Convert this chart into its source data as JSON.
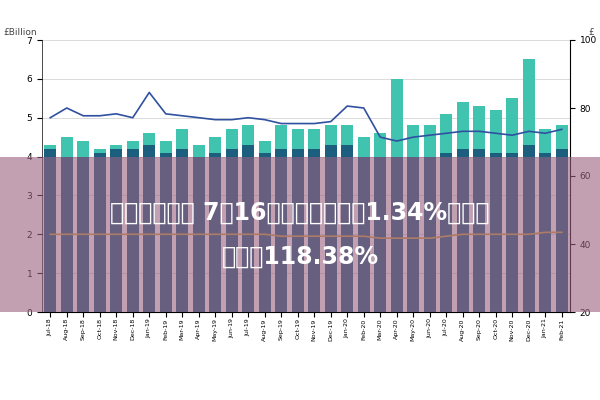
{
  "ylabel_left": "£Billion",
  "ylabel_right": "£",
  "ylim_left": [
    0,
    7
  ],
  "ylim_right": [
    20,
    100
  ],
  "yticks_left": [
    0,
    1,
    2,
    3,
    4,
    5,
    6,
    7
  ],
  "yticks_right": [
    20,
    40,
    60,
    80,
    100
  ],
  "categories": [
    "Jul-18",
    "Aug-18",
    "Sep-18",
    "Oct-18",
    "Nov-18",
    "Dec-18",
    "Jan-19",
    "Feb-19",
    "Mar-19",
    "Apr-19",
    "May-19",
    "Jun-19",
    "Jul-19",
    "Aug-19",
    "Sep-19",
    "Oct-19",
    "Nov-19",
    "Dec-19",
    "Jan-20",
    "Feb-20",
    "Mar-20",
    "Apr-20",
    "May-20",
    "Jun-20",
    "Jul-20",
    "Aug-20",
    "Sep-20",
    "Oct-20",
    "Nov-20",
    "Dec-20",
    "Jan-21",
    "Feb-21"
  ],
  "debit_cards": [
    4.3,
    4.5,
    4.4,
    4.2,
    4.3,
    4.4,
    4.6,
    4.4,
    4.7,
    4.3,
    4.5,
    4.7,
    4.8,
    4.4,
    4.8,
    4.7,
    4.7,
    4.8,
    4.8,
    4.5,
    4.6,
    6.0,
    4.8,
    4.8,
    5.1,
    5.4,
    5.3,
    5.2,
    5.5,
    6.5,
    4.7,
    4.8
  ],
  "credit_cards": [
    4.2,
    4.0,
    4.0,
    4.1,
    4.2,
    4.2,
    4.3,
    4.1,
    4.2,
    4.0,
    4.1,
    4.2,
    4.3,
    4.1,
    4.2,
    4.2,
    4.2,
    4.3,
    4.3,
    4.0,
    4.0,
    4.0,
    4.0,
    4.0,
    4.1,
    4.2,
    4.2,
    4.1,
    4.1,
    4.3,
    4.1,
    4.2
  ],
  "avg_credit_expenditure": [
    5.0,
    5.25,
    5.05,
    5.05,
    5.1,
    5.0,
    5.65,
    5.1,
    5.05,
    5.0,
    4.95,
    4.95,
    5.0,
    4.95,
    4.85,
    4.85,
    4.85,
    4.9,
    5.3,
    5.25,
    4.5,
    4.4,
    4.5,
    4.55,
    4.6,
    4.65,
    4.65,
    4.6,
    4.55,
    4.65,
    4.6,
    4.7
  ],
  "avg_debit_expenditure": [
    2.0,
    2.0,
    2.0,
    2.0,
    2.0,
    2.0,
    2.0,
    2.0,
    2.0,
    2.0,
    2.0,
    2.0,
    2.0,
    2.0,
    1.95,
    1.95,
    1.95,
    1.95,
    1.95,
    1.95,
    1.9,
    1.9,
    1.9,
    1.9,
    1.95,
    2.0,
    2.0,
    2.0,
    2.0,
    2.0,
    2.05,
    2.05
  ],
  "debit_color": "#40C4B0",
  "credit_color": "#1B5E7E",
  "avg_credit_color": "#3050A0",
  "avg_debit_color": "#C8A840",
  "overlay_color": "#9B6080",
  "overlay_alpha": 0.6,
  "text_line1": "网上平台配资 7月16日双良转失下跌1.34%，转股",
  "text_line2": "溢价率118.38%",
  "text_color": "#FFFFFF",
  "text_fontsize": 17,
  "bg_color": "#FFFFFF",
  "grid_color": "#CCCCCC"
}
